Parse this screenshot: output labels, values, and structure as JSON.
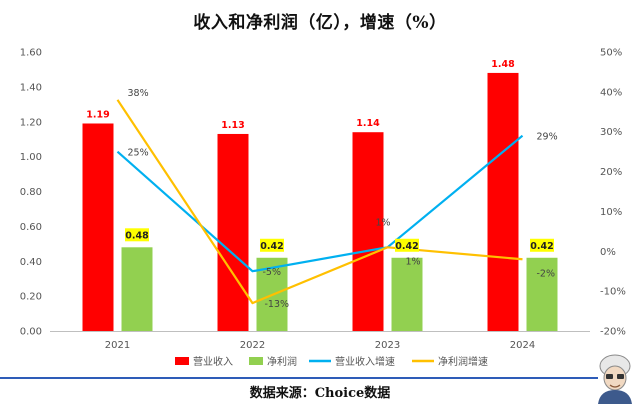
{
  "title": "收入和净利润（亿），增速（%）",
  "source": "数据来源：Choice数据",
  "chart_data": {
    "type": "bar",
    "title": "收入和净利润（亿），增速（%）",
    "categories": [
      "2021",
      "2022",
      "2023",
      "2024"
    ],
    "series": [
      {
        "name": "营业收入",
        "kind": "bar",
        "axis": "left",
        "color": "#ff0000",
        "values": [
          1.19,
          1.13,
          1.14,
          1.48
        ],
        "labels": [
          "1.19",
          "1.13",
          "1.14",
          "1.48"
        ]
      },
      {
        "name": "净利润",
        "kind": "bar",
        "axis": "left",
        "color": "#92d050",
        "values": [
          0.48,
          0.42,
          0.42,
          0.42
        ],
        "labels": [
          "0.48",
          "0.42",
          "0.42",
          "0.42"
        ]
      },
      {
        "name": "营业收入增速",
        "kind": "line",
        "axis": "right",
        "color": "#00b0f0",
        "values": [
          25,
          -5,
          1,
          29
        ],
        "labels": [
          "25%",
          "-5%",
          "1%",
          "29%"
        ]
      },
      {
        "name": "净利润增速",
        "kind": "line",
        "axis": "right",
        "color": "#ffc000",
        "values": [
          38,
          -13,
          1,
          -2
        ],
        "labels": [
          "38%",
          "-13%",
          "1%",
          "-2%"
        ]
      }
    ],
    "y_left": {
      "min": 0,
      "max": 1.6,
      "step": 0.2,
      "ticks": [
        "0.00",
        "0.20",
        "0.40",
        "0.60",
        "0.80",
        "1.00",
        "1.20",
        "1.40",
        "1.60"
      ]
    },
    "y_right": {
      "min": -20,
      "max": 50,
      "step": 10,
      "ticks": [
        "-20%",
        "-10%",
        "0%",
        "10%",
        "20%",
        "30%",
        "40%",
        "50%"
      ]
    },
    "grid": false,
    "legend": "bottom",
    "label_highlight_color": "#ffff00"
  }
}
